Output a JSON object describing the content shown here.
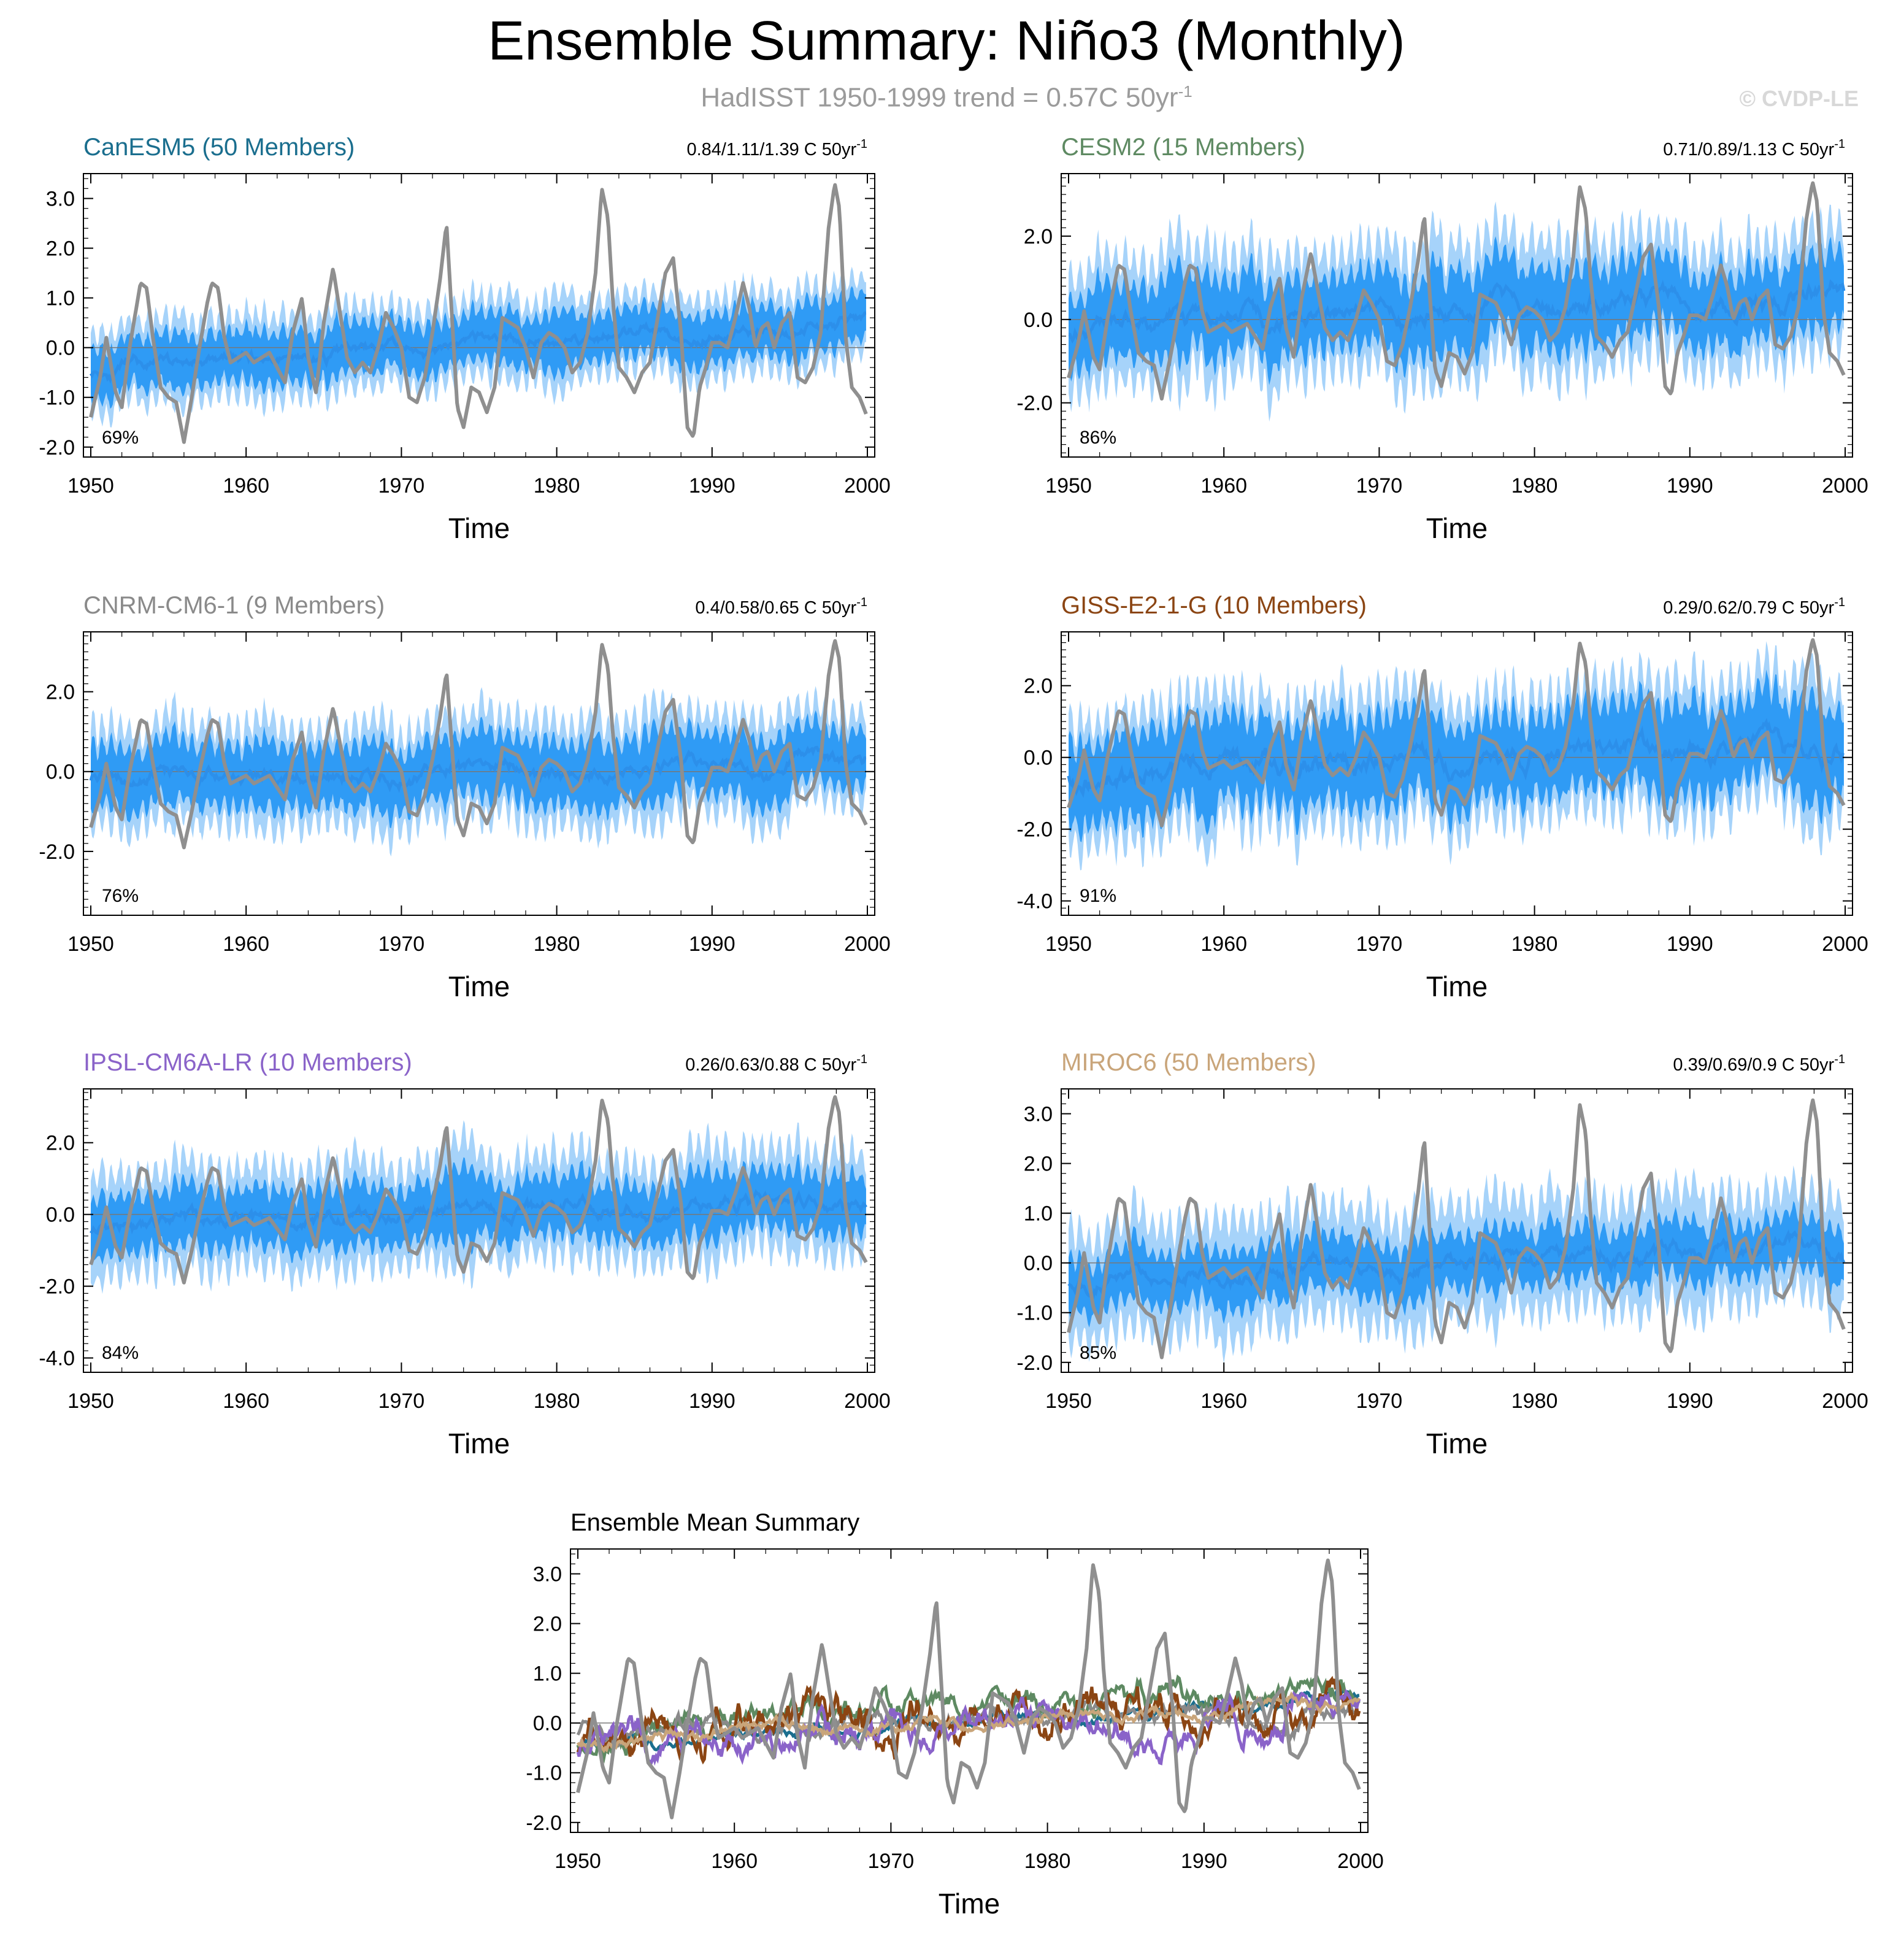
{
  "title": "Ensemble Summary: Niño3 (Monthly)",
  "subtitle": {
    "text": "HadISST 1950-1999 trend = 0.57C 50yr",
    "superscript": "-1"
  },
  "watermark": "© CVDP-LE",
  "colors": {
    "observed": "#8f8f8f",
    "ensemble_mean": "#2c8fea",
    "spread_outer": "#a6d3fa",
    "spread_inner": "#2f9bf5",
    "zero_line": "#777777"
  },
  "chart_data": [
    {
      "type": "area",
      "title": "CanESM5 (50 Members)",
      "title_color": "#1a6e8e",
      "trend_label": "0.84/1.11/1.39 C 50yr",
      "trend_superscript": "-1",
      "percent_label": "69%",
      "xlabel": "Time",
      "ylabel": "",
      "xlim": [
        1950,
        2000
      ],
      "ylim": [
        -2.2,
        3.5
      ],
      "x_ticks": [
        1950,
        1960,
        1970,
        1980,
        1990,
        2000
      ],
      "y_ticks": [
        "-2.0",
        "-1.0",
        "0.0",
        "1.0",
        "2.0",
        "3.0"
      ],
      "mean_trend": [
        -0.45,
        0.55
      ],
      "inner_halfwidth": 0.55,
      "outer_halfwidth": 0.9,
      "noise": 0.25,
      "seed": 11
    },
    {
      "type": "area",
      "title": "CESM2 (15 Members)",
      "title_color": "#5e8a62",
      "trend_label": "0.71/0.89/1.13 C 50yr",
      "trend_superscript": "-1",
      "percent_label": "86%",
      "xlabel": "Time",
      "ylabel": "",
      "xlim": [
        1950,
        2000
      ],
      "ylim": [
        -3.3,
        3.5
      ],
      "x_ticks": [
        1950,
        1960,
        1970,
        1980,
        1990,
        2000
      ],
      "y_ticks": [
        "-2.0",
        "0.0",
        "2.0"
      ],
      "mean_trend": [
        -0.2,
        0.6
      ],
      "inner_halfwidth": 1.0,
      "outer_halfwidth": 1.7,
      "noise": 0.45,
      "seed": 23
    },
    {
      "type": "area",
      "title": "CNRM-CM6-1 (9 Members)",
      "title_color": "#8a8a8a",
      "trend_label": "0.4/0.58/0.65 C 50yr",
      "trend_superscript": "-1",
      "percent_label": "76%",
      "xlabel": "Time",
      "ylabel": "",
      "xlim": [
        1950,
        2000
      ],
      "ylim": [
        -3.6,
        3.5
      ],
      "x_ticks": [
        1950,
        1960,
        1970,
        1980,
        1990,
        2000
      ],
      "y_ticks": [
        "-2.0",
        "0.0",
        "2.0"
      ],
      "mean_trend": [
        -0.15,
        0.2
      ],
      "inner_halfwidth": 0.85,
      "outer_halfwidth": 1.4,
      "noise": 0.35,
      "seed": 37
    },
    {
      "type": "area",
      "title": "GISS-E2-1-G (10 Members)",
      "title_color": "#8b4513",
      "trend_label": "0.29/0.62/0.79 C 50yr",
      "trend_superscript": "-1",
      "percent_label": "91%",
      "xlabel": "Time",
      "ylabel": "",
      "xlim": [
        1950,
        2000
      ],
      "ylim": [
        -4.4,
        3.5
      ],
      "x_ticks": [
        1950,
        1960,
        1970,
        1980,
        1990,
        2000
      ],
      "y_ticks": [
        "-4.0",
        "-2.0",
        "0.0",
        "2.0"
      ],
      "mean_trend": [
        -0.4,
        0.35
      ],
      "inner_halfwidth": 1.3,
      "outer_halfwidth": 2.0,
      "noise": 0.6,
      "seed": 53
    },
    {
      "type": "area",
      "title": "IPSL-CM6A-LR (10 Members)",
      "title_color": "#8a63c9",
      "trend_label": "0.26/0.63/0.88 C 50yr",
      "trend_superscript": "-1",
      "percent_label": "84%",
      "xlabel": "Time",
      "ylabel": "",
      "xlim": [
        1950,
        2000
      ],
      "ylim": [
        -4.4,
        3.5
      ],
      "x_ticks": [
        1950,
        1960,
        1970,
        1980,
        1990,
        2000
      ],
      "y_ticks": [
        "-4.0",
        "-2.0",
        "0.0",
        "2.0"
      ],
      "mean_trend": [
        -0.4,
        0.4
      ],
      "inner_halfwidth": 0.9,
      "outer_halfwidth": 1.6,
      "noise": 0.4,
      "seed": 71
    },
    {
      "type": "area",
      "title": "MIROC6 (50 Members)",
      "title_color": "#c9a57a",
      "trend_label": "0.39/0.69/0.9 C 50yr",
      "trend_superscript": "-1",
      "percent_label": "85%",
      "xlabel": "Time",
      "ylabel": "",
      "xlim": [
        1950,
        2000
      ],
      "ylim": [
        -2.2,
        3.5
      ],
      "x_ticks": [
        1950,
        1960,
        1970,
        1980,
        1990,
        2000
      ],
      "y_ticks": [
        "-2.0",
        "-1.0",
        "0.0",
        "1.0",
        "2.0",
        "3.0"
      ],
      "mean_trend": [
        -0.35,
        0.4
      ],
      "inner_halfwidth": 0.6,
      "outer_halfwidth": 1.25,
      "noise": 0.3,
      "seed": 89
    },
    {
      "type": "line",
      "title": "Ensemble Mean Summary",
      "title_color": "#000000",
      "xlabel": "Time",
      "ylabel": "",
      "xlim": [
        1950,
        2000
      ],
      "ylim": [
        -2.2,
        3.5
      ],
      "x_ticks": [
        1950,
        1960,
        1970,
        1980,
        1990,
        2000
      ],
      "y_ticks": [
        "-2.0",
        "-1.0",
        "0.0",
        "1.0",
        "2.0",
        "3.0"
      ],
      "series": [
        {
          "name": "CanESM5",
          "color": "#1a6e8e",
          "trend": [
            -0.45,
            0.55
          ],
          "amp": 0.2,
          "seed": 101
        },
        {
          "name": "CESM2",
          "color": "#5e8a62",
          "trend": [
            -0.3,
            0.7
          ],
          "amp": 0.45,
          "seed": 102
        },
        {
          "name": "CNRM-CM6-1",
          "color": "#8a8a8a",
          "trend": [
            -0.15,
            0.2
          ],
          "amp": 0.3,
          "seed": 103
        },
        {
          "name": "GISS-E2-1-G",
          "color": "#8b4513",
          "trend": [
            -0.4,
            0.4
          ],
          "amp": 0.7,
          "seed": 104
        },
        {
          "name": "IPSL-CM6A-LR",
          "color": "#8a63c9",
          "trend": [
            -0.45,
            0.35
          ],
          "amp": 0.55,
          "seed": 105
        },
        {
          "name": "MIROC6",
          "color": "#c9a57a",
          "trend": [
            -0.35,
            0.45
          ],
          "amp": 0.2,
          "seed": 106
        }
      ]
    }
  ],
  "observed_series": {
    "name": "HadISST",
    "description_points": [
      [
        1950.0,
        -1.4
      ],
      [
        1950.6,
        -0.6
      ],
      [
        1951.0,
        0.2
      ],
      [
        1951.6,
        -0.9
      ],
      [
        1952.0,
        -1.2
      ],
      [
        1952.5,
        0.0
      ],
      [
        1953.2,
        1.3
      ],
      [
        1953.6,
        1.2
      ],
      [
        1954.0,
        0.2
      ],
      [
        1954.5,
        -0.8
      ],
      [
        1955.0,
        -1.0
      ],
      [
        1955.5,
        -1.1
      ],
      [
        1956.0,
        -1.9
      ],
      [
        1956.5,
        -1.0
      ],
      [
        1957.0,
        0.0
      ],
      [
        1957.5,
        0.9
      ],
      [
        1957.8,
        1.3
      ],
      [
        1958.2,
        1.2
      ],
      [
        1958.6,
        0.2
      ],
      [
        1959.0,
        -0.3
      ],
      [
        1959.5,
        -0.2
      ],
      [
        1960.0,
        -0.1
      ],
      [
        1960.5,
        -0.3
      ],
      [
        1961.0,
        -0.2
      ],
      [
        1961.5,
        -0.1
      ],
      [
        1962.0,
        -0.4
      ],
      [
        1962.5,
        -0.7
      ],
      [
        1963.0,
        0.3
      ],
      [
        1963.6,
        1.0
      ],
      [
        1964.0,
        -0.2
      ],
      [
        1964.5,
        -0.9
      ],
      [
        1965.0,
        0.5
      ],
      [
        1965.6,
        1.6
      ],
      [
        1966.0,
        0.8
      ],
      [
        1966.5,
        -0.2
      ],
      [
        1967.0,
        -0.5
      ],
      [
        1967.5,
        -0.3
      ],
      [
        1968.0,
        -0.5
      ],
      [
        1968.5,
        0.0
      ],
      [
        1969.0,
        0.7
      ],
      [
        1969.5,
        0.4
      ],
      [
        1970.0,
        0.0
      ],
      [
        1970.5,
        -1.0
      ],
      [
        1971.0,
        -1.1
      ],
      [
        1971.5,
        -0.6
      ],
      [
        1972.0,
        0.3
      ],
      [
        1972.5,
        1.4
      ],
      [
        1972.9,
        2.5
      ],
      [
        1973.2,
        0.9
      ],
      [
        1973.6,
        -1.2
      ],
      [
        1974.0,
        -1.6
      ],
      [
        1974.5,
        -0.8
      ],
      [
        1975.0,
        -0.9
      ],
      [
        1975.5,
        -1.3
      ],
      [
        1976.0,
        -0.8
      ],
      [
        1976.5,
        0.6
      ],
      [
        1977.0,
        0.5
      ],
      [
        1977.5,
        0.4
      ],
      [
        1978.0,
        0.0
      ],
      [
        1978.5,
        -0.6
      ],
      [
        1979.0,
        0.1
      ],
      [
        1979.5,
        0.3
      ],
      [
        1980.0,
        0.2
      ],
      [
        1980.5,
        0.0
      ],
      [
        1981.0,
        -0.5
      ],
      [
        1981.5,
        -0.3
      ],
      [
        1982.0,
        0.3
      ],
      [
        1982.5,
        1.5
      ],
      [
        1982.9,
        3.2
      ],
      [
        1983.3,
        2.6
      ],
      [
        1983.6,
        1.0
      ],
      [
        1984.0,
        -0.4
      ],
      [
        1984.5,
        -0.6
      ],
      [
        1985.0,
        -0.9
      ],
      [
        1985.5,
        -0.5
      ],
      [
        1986.0,
        -0.3
      ],
      [
        1986.5,
        0.6
      ],
      [
        1987.0,
        1.5
      ],
      [
        1987.5,
        1.8
      ],
      [
        1988.0,
        0.3
      ],
      [
        1988.4,
        -1.6
      ],
      [
        1988.8,
        -1.8
      ],
      [
        1989.2,
        -0.8
      ],
      [
        1989.6,
        -0.4
      ],
      [
        1990.0,
        0.1
      ],
      [
        1990.5,
        0.1
      ],
      [
        1991.0,
        0.0
      ],
      [
        1991.5,
        0.6
      ],
      [
        1992.0,
        1.3
      ],
      [
        1992.4,
        0.8
      ],
      [
        1992.8,
        0.0
      ],
      [
        1993.2,
        0.4
      ],
      [
        1993.6,
        0.5
      ],
      [
        1994.0,
        0.0
      ],
      [
        1994.5,
        0.5
      ],
      [
        1995.0,
        0.7
      ],
      [
        1995.5,
        -0.6
      ],
      [
        1996.0,
        -0.7
      ],
      [
        1996.5,
        -0.4
      ],
      [
        1997.0,
        0.3
      ],
      [
        1997.5,
        2.4
      ],
      [
        1997.9,
        3.3
      ],
      [
        1998.2,
        2.8
      ],
      [
        1998.6,
        0.2
      ],
      [
        1999.0,
        -0.8
      ],
      [
        1999.5,
        -1.0
      ],
      [
        2000.0,
        -1.4
      ]
    ]
  }
}
